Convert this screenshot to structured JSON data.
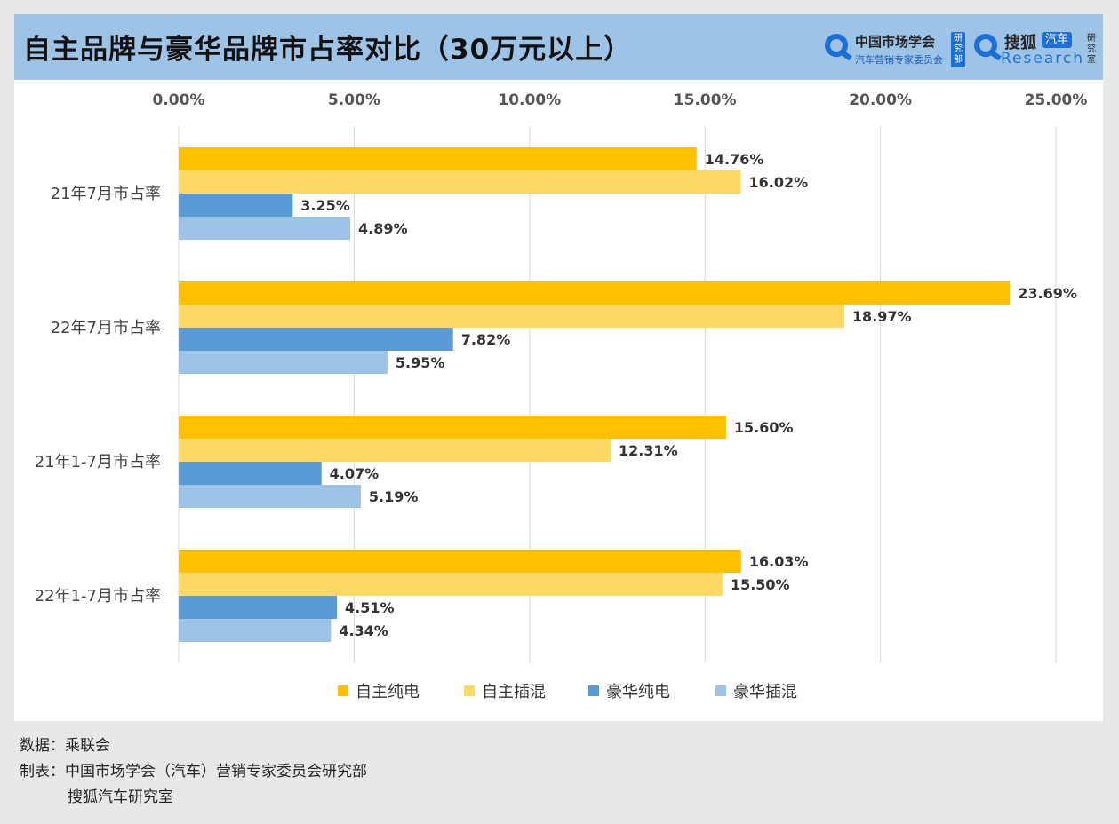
{
  "header": {
    "title": "自主品牌与豪华品牌市占率对比（30万元以上）",
    "logo1": {
      "line1": "中国市场学会",
      "line2": "汽车营销专家委员会",
      "tag": "研究部"
    },
    "logo2": {
      "line1": "搜狐",
      "badge": "汽车",
      "line2": "Research",
      "tag": "研究室"
    }
  },
  "chart_data": {
    "type": "bar",
    "orientation": "horizontal",
    "categories": [
      "21年7月市占率",
      "22年7月市占率",
      "21年1-7月市占率",
      "22年1-7月市占率"
    ],
    "series": [
      {
        "name": "自主纯电",
        "color": "#ffc000",
        "values": [
          14.76,
          23.69,
          15.6,
          16.03
        ],
        "labels": [
          "14.76%",
          "23.69%",
          "15.60%",
          "16.03%"
        ]
      },
      {
        "name": "自主插混",
        "color": "#ffd966",
        "values": [
          16.02,
          18.97,
          12.31,
          15.5
        ],
        "labels": [
          "16.02%",
          "18.97%",
          "12.31%",
          "15.50%"
        ]
      },
      {
        "name": "豪华纯电",
        "color": "#5b9bd5",
        "values": [
          3.25,
          7.82,
          4.07,
          4.51
        ],
        "labels": [
          "3.25%",
          "7.82%",
          "4.07%",
          "4.51%"
        ]
      },
      {
        "name": "豪华插混",
        "color": "#9dc3e6",
        "values": [
          4.89,
          5.95,
          5.19,
          4.34
        ],
        "labels": [
          "4.89%",
          "5.95%",
          "5.19%",
          "4.34%"
        ]
      }
    ],
    "xticks": [
      0,
      5,
      10,
      15,
      20,
      25
    ],
    "xtick_labels": [
      "0.00%",
      "5.00%",
      "10.00%",
      "15.00%",
      "20.00%",
      "25.00%"
    ],
    "xlim": [
      0,
      25
    ],
    "xaxis_position": "top",
    "grid": true,
    "legend": "bottom"
  },
  "footer": {
    "source": "数据：乘联会",
    "maker": "制表：中国市场学会（汽车）营销专家委员会研究部",
    "maker2": "搜狐汽车研究室"
  }
}
